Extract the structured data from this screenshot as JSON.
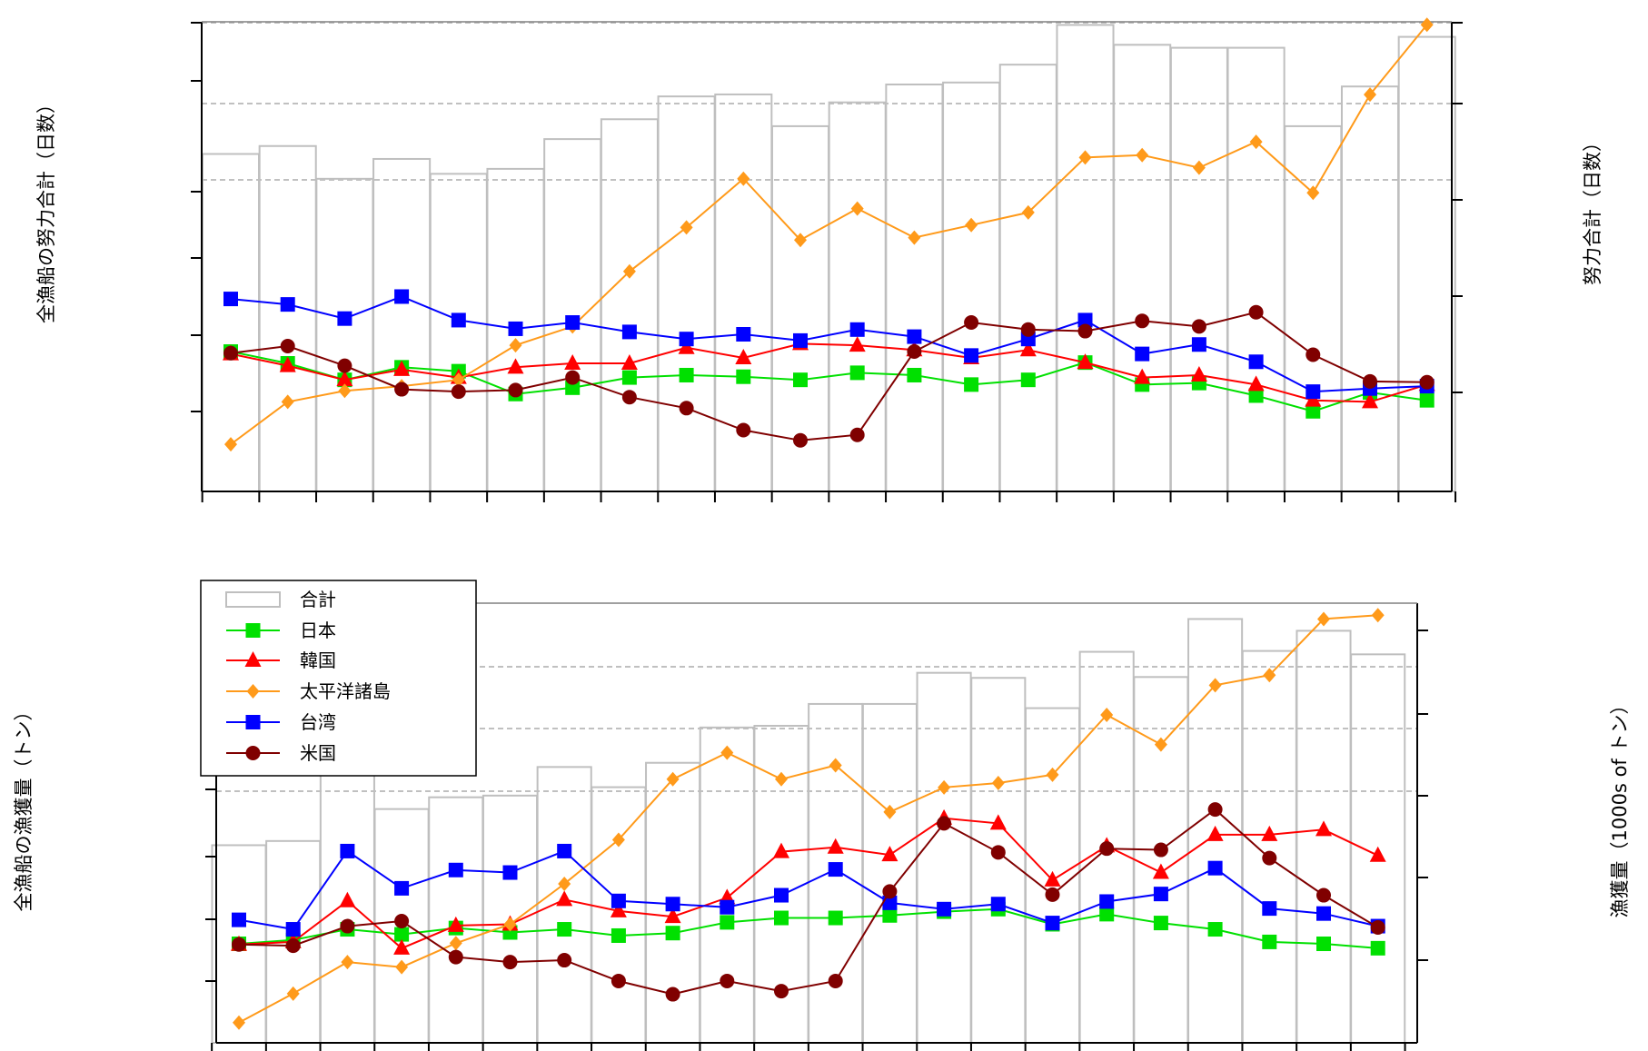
{
  "colors": {
    "total": "#bfbfbf",
    "japan": "#00e000",
    "korea": "#ff0000",
    "pacific": "#ff9a1a",
    "taiwan": "#0000ff",
    "usa": "#800000",
    "gridline": "#c0c0c0"
  },
  "chart_data": [
    {
      "type": "bar",
      "title": "",
      "ylabel_left": "全漁船の努力合計（日数）",
      "ylabel_right": "努力合計（日数）",
      "grid": "dashed horizontal at selected right-axis ticks",
      "n_years": 22,
      "ylim_left": [
        0,
        6
      ],
      "ylim_right": [
        0,
        4.75
      ],
      "bars": {
        "name": "合計",
        "axis": "right",
        "values": [
          3.4,
          3.48,
          3.15,
          3.35,
          3.2,
          3.25,
          3.55,
          3.75,
          3.98,
          4.0,
          3.68,
          3.92,
          4.1,
          4.12,
          4.3,
          4.7,
          4.5,
          4.47,
          4.47,
          3.68,
          4.08,
          4.58
        ]
      },
      "series": [
        {
          "name": "日本",
          "marker": "square",
          "axis": "left",
          "values": [
            1.78,
            1.63,
            1.42,
            1.58,
            1.53,
            1.24,
            1.32,
            1.45,
            1.48,
            1.46,
            1.42,
            1.51,
            1.48,
            1.36,
            1.42,
            1.64,
            1.36,
            1.38,
            1.22,
            1.02,
            1.26,
            1.16
          ]
        },
        {
          "name": "韓国",
          "marker": "triangle",
          "axis": "left",
          "values": [
            1.75,
            1.6,
            1.42,
            1.55,
            1.45,
            1.58,
            1.63,
            1.63,
            1.83,
            1.7,
            1.88,
            1.86,
            1.8,
            1.7,
            1.8,
            1.64,
            1.45,
            1.48,
            1.36,
            1.16,
            1.14,
            1.36
          ]
        },
        {
          "name": "太平洋諸島",
          "marker": "diamond",
          "axis": "left",
          "values": [
            0.6,
            1.14,
            1.28,
            1.34,
            1.42,
            1.86,
            2.1,
            2.8,
            3.36,
            3.98,
            3.2,
            3.6,
            3.23,
            3.39,
            3.55,
            4.25,
            4.28,
            4.12,
            4.45,
            3.8,
            5.05,
            5.94
          ]
        },
        {
          "name": "台湾",
          "marker": "square",
          "axis": "left",
          "values": [
            2.45,
            2.38,
            2.2,
            2.48,
            2.18,
            2.07,
            2.15,
            2.03,
            1.94,
            2.0,
            1.92,
            2.06,
            1.97,
            1.73,
            1.94,
            2.18,
            1.75,
            1.87,
            1.65,
            1.27,
            1.31,
            1.34
          ]
        },
        {
          "name": "米国",
          "marker": "circle",
          "axis": "left",
          "values": [
            1.76,
            1.85,
            1.6,
            1.3,
            1.27,
            1.29,
            1.45,
            1.2,
            1.06,
            0.78,
            0.65,
            0.72,
            1.78,
            2.15,
            2.06,
            2.04,
            2.17,
            2.1,
            2.28,
            1.74,
            1.4,
            1.39
          ]
        }
      ]
    },
    {
      "type": "bar",
      "title": "",
      "ylabel_left": "全漁船の漁獲量（トン）",
      "ylabel_right": "漁獲量（1000s of トン）",
      "grid": "dashed horizontal at selected right-axis ticks",
      "n_years": 22,
      "ylim_left": [
        0,
        7
      ],
      "ylim_right": [
        0,
        5.25
      ],
      "legend": {
        "position": "top-left"
      },
      "bars": {
        "name": "合計",
        "axis": "right",
        "values": [
          2.35,
          2.4,
          3.2,
          2.78,
          2.92,
          2.94,
          3.28,
          3.04,
          3.33,
          3.75,
          3.77,
          4.03,
          4.03,
          4.4,
          4.34,
          3.98,
          4.65,
          4.35,
          5.04,
          4.66,
          4.9,
          4.62
        ]
      },
      "series": [
        {
          "name": "日本",
          "marker": "square",
          "axis": "left",
          "values": [
            1.57,
            1.63,
            1.8,
            1.72,
            1.82,
            1.75,
            1.8,
            1.7,
            1.74,
            1.91,
            1.98,
            1.98,
            2.02,
            2.08,
            2.12,
            1.88,
            2.04,
            1.9,
            1.8,
            1.6,
            1.57,
            1.5
          ]
        },
        {
          "name": "韓国",
          "marker": "triangle",
          "axis": "left",
          "values": [
            1.56,
            1.6,
            2.25,
            1.5,
            1.86,
            1.88,
            2.27,
            2.09,
            2.0,
            2.3,
            3.03,
            3.1,
            2.98,
            3.56,
            3.48,
            2.58,
            3.12,
            2.7,
            3.3,
            3.3,
            3.38,
            2.97
          ]
        },
        {
          "name": "太平洋諸島",
          "marker": "diamond",
          "axis": "left",
          "values": [
            0.32,
            0.78,
            1.28,
            1.2,
            1.58,
            1.88,
            2.52,
            3.22,
            4.18,
            4.6,
            4.18,
            4.4,
            3.66,
            4.05,
            4.12,
            4.25,
            5.2,
            4.73,
            5.67,
            5.83,
            6.72,
            6.78
          ]
        },
        {
          "name": "台湾",
          "marker": "square",
          "axis": "left",
          "values": [
            1.95,
            1.8,
            3.04,
            2.45,
            2.74,
            2.7,
            3.04,
            2.25,
            2.2,
            2.15,
            2.34,
            2.75,
            2.22,
            2.12,
            2.2,
            1.9,
            2.24,
            2.36,
            2.77,
            2.13,
            2.05,
            1.85
          ]
        },
        {
          "name": "米国",
          "marker": "circle",
          "axis": "left",
          "values": [
            1.56,
            1.54,
            1.85,
            1.93,
            1.36,
            1.28,
            1.31,
            0.98,
            0.77,
            0.98,
            0.82,
            0.98,
            2.4,
            3.48,
            3.02,
            2.35,
            3.08,
            3.06,
            3.7,
            2.93,
            2.34,
            1.83
          ]
        }
      ]
    }
  ]
}
